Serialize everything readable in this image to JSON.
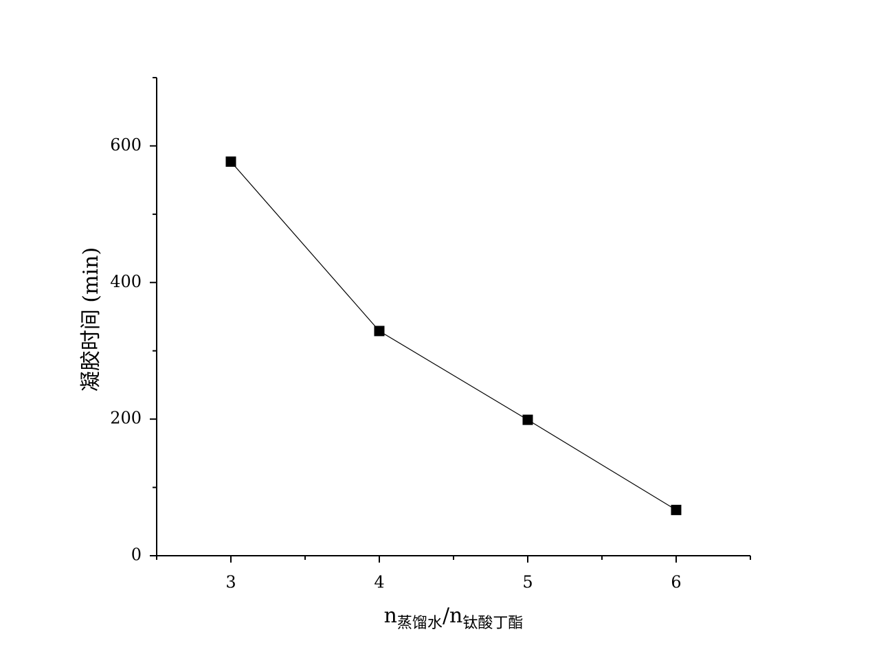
{
  "chart_data": {
    "type": "line",
    "xlabel": [
      "n",
      "蒸馏水",
      "/n",
      "钛酸丁酯"
    ],
    "ylabel": "凝胶时间 (min)",
    "x": [
      3,
      4,
      5,
      6
    ],
    "series": [
      {
        "color": "#000000",
        "values": [
          577,
          329,
          199,
          67
        ]
      }
    ],
    "xlim": [
      2.5,
      6.5
    ],
    "xticks": [
      3,
      4,
      5,
      6
    ],
    "xminorticks": [
      2.5,
      3.5,
      4.5,
      5.5,
      6.5
    ],
    "ylim": [
      0,
      700
    ],
    "yticks": [
      0,
      200,
      400,
      600
    ],
    "yminorticks": [
      100,
      300,
      500,
      700
    ],
    "marker": "square"
  }
}
